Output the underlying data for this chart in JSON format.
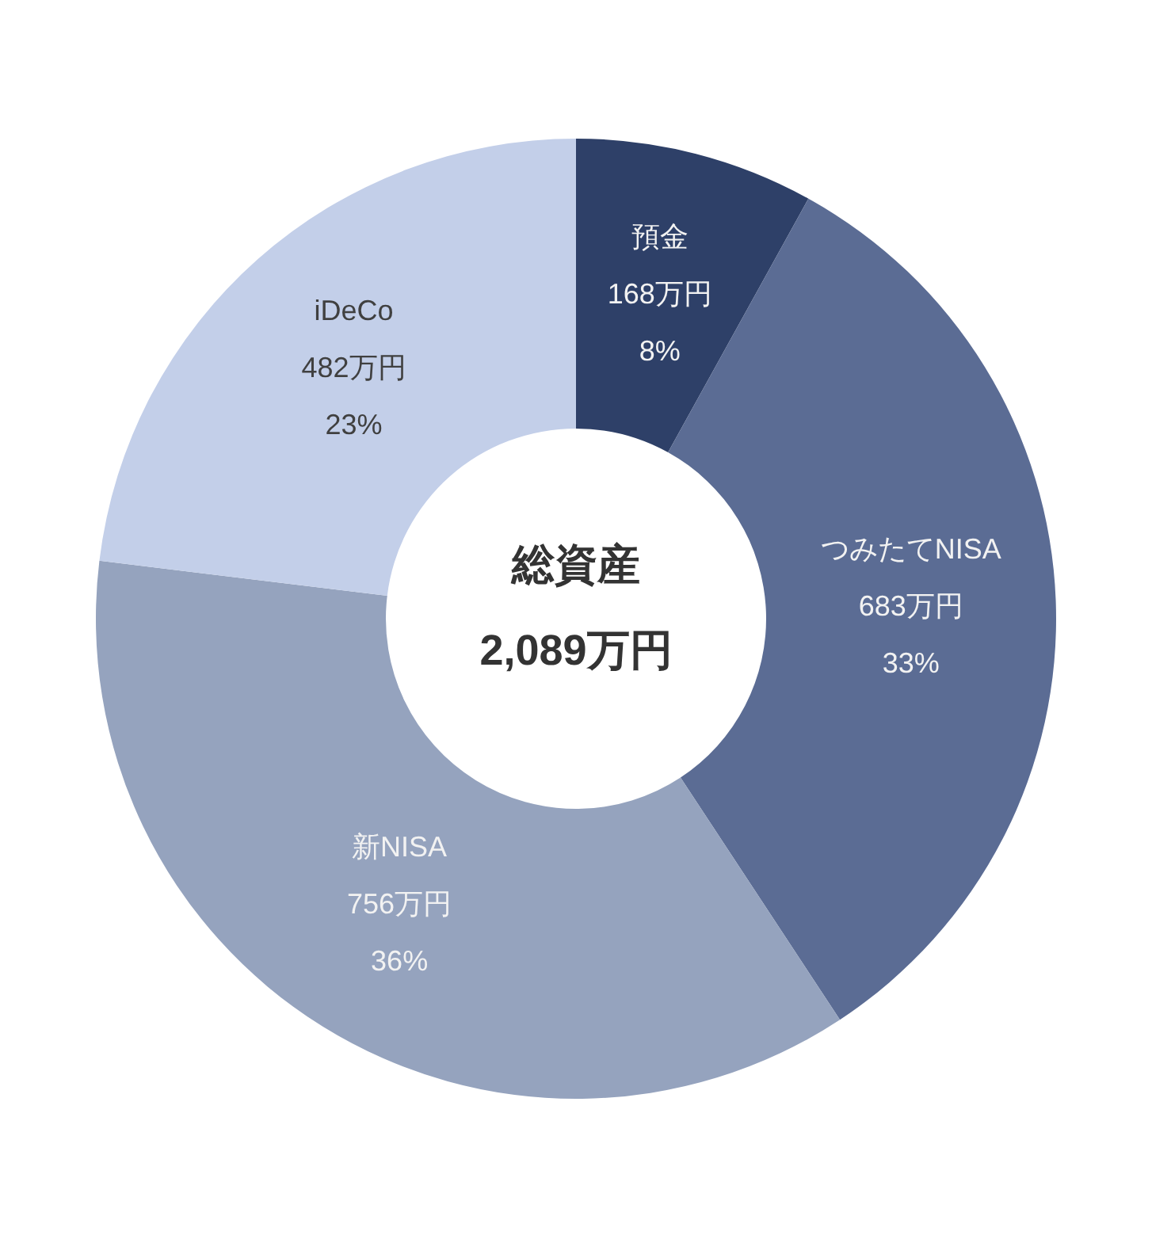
{
  "chart_data": {
    "type": "donut",
    "categories": [
      "預金",
      "つみたてNISA",
      "新NISA",
      "iDeCo"
    ],
    "values": [
      168,
      683,
      756,
      482
    ],
    "colors": [
      "#2e4068",
      "#5b6c94",
      "#95a3be",
      "#c3cfe9"
    ],
    "value_labels": [
      "168万円\n8%",
      "683万円\n33%",
      "756万円\n36%",
      "482万円\n23%"
    ],
    "annotations": [
      "総資産",
      "2,089万円"
    ]
  }
}
